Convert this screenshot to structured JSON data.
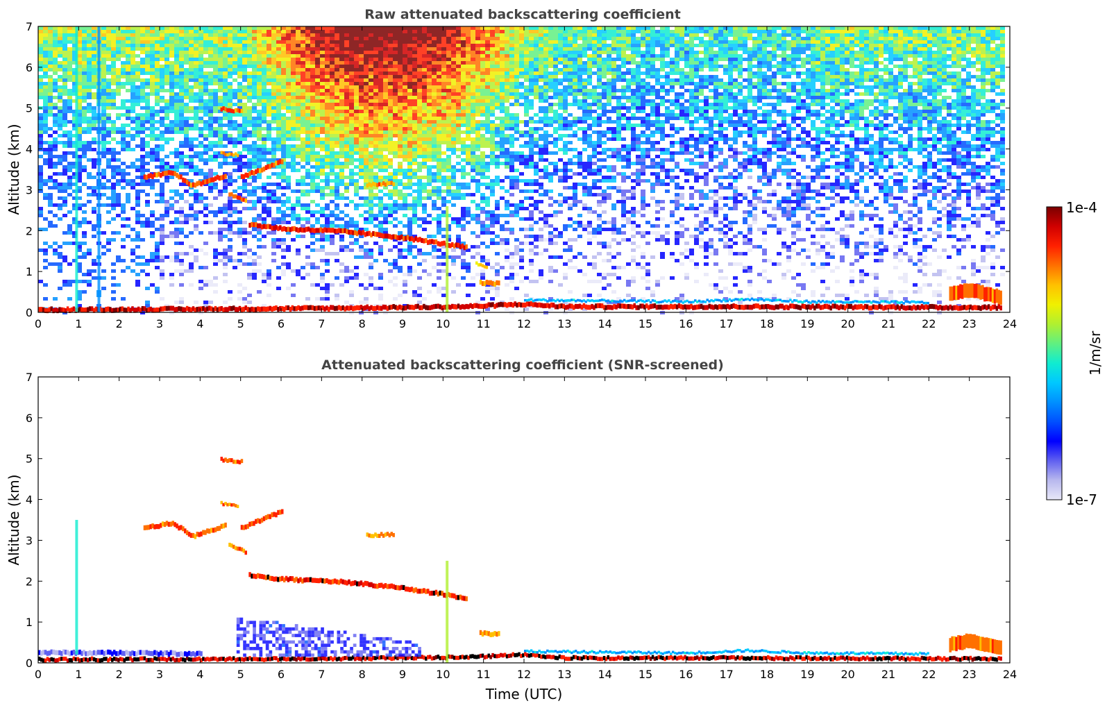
{
  "chart_data": [
    {
      "type": "heatmap",
      "title": "Raw attenuated backscattering coefficient",
      "xlabel": "",
      "ylabel": "Altitude (km)",
      "xlim": [
        0,
        24
      ],
      "ylim": [
        0,
        7
      ],
      "xticks": [
        "0",
        "1",
        "2",
        "3",
        "4",
        "5",
        "6",
        "7",
        "8",
        "9",
        "10",
        "11",
        "12",
        "13",
        "14",
        "15",
        "16",
        "17",
        "18",
        "19",
        "20",
        "21",
        "22",
        "23",
        "24"
      ],
      "yticks": [
        "0",
        "1",
        "2",
        "3",
        "4",
        "5",
        "6",
        "7"
      ],
      "noise": "high",
      "features": [
        {
          "kind": "layer",
          "points": [
            [
              0.0,
              0.06
            ],
            [
              4.0,
              0.08
            ],
            [
              7.0,
              0.1
            ],
            [
              10.5,
              0.14
            ],
            [
              12.0,
              0.2
            ],
            [
              13.0,
              0.14
            ],
            [
              17.0,
              0.14
            ],
            [
              22.5,
              0.12
            ],
            [
              23.8,
              0.12
            ]
          ],
          "thickness": 0.12,
          "level": 1.0
        },
        {
          "kind": "layer",
          "points": [
            [
              5.2,
              2.15
            ],
            [
              6.0,
              2.05
            ],
            [
              7.5,
              1.98
            ],
            [
              9.0,
              1.83
            ],
            [
              10.6,
              1.58
            ]
          ],
          "thickness": 0.12,
          "level": 0.95
        },
        {
          "kind": "layer",
          "points": [
            [
              2.6,
              3.3
            ],
            [
              3.3,
              3.42
            ],
            [
              3.8,
              3.1
            ],
            [
              4.6,
              3.35
            ]
          ],
          "thickness": 0.12,
          "level": 0.9
        },
        {
          "kind": "layer",
          "points": [
            [
              5.0,
              3.3
            ],
            [
              5.5,
              3.5
            ],
            [
              6.0,
              3.7
            ]
          ],
          "thickness": 0.12,
          "level": 0.9
        },
        {
          "kind": "layer",
          "points": [
            [
              4.5,
              4.98
            ],
            [
              5.0,
              4.92
            ]
          ],
          "thickness": 0.1,
          "level": 0.9
        },
        {
          "kind": "layer",
          "points": [
            [
              4.5,
              3.9
            ],
            [
              4.9,
              3.85
            ]
          ],
          "thickness": 0.08,
          "level": 0.85
        },
        {
          "kind": "layer",
          "points": [
            [
              4.7,
              2.9
            ],
            [
              5.1,
              2.72
            ]
          ],
          "thickness": 0.1,
          "level": 0.85
        },
        {
          "kind": "layer",
          "points": [
            [
              8.1,
              3.12
            ],
            [
              8.8,
              3.15
            ]
          ],
          "thickness": 0.1,
          "level": 0.85
        },
        {
          "kind": "layer",
          "points": [
            [
              10.8,
              1.2
            ],
            [
              11.1,
              1.1
            ]
          ],
          "thickness": 0.08,
          "level": 0.8
        },
        {
          "kind": "layer",
          "points": [
            [
              10.9,
              0.72
            ],
            [
              11.4,
              0.7
            ]
          ],
          "thickness": 0.12,
          "level": 0.85
        },
        {
          "kind": "layer",
          "points": [
            [
              22.5,
              0.45
            ],
            [
              23.0,
              0.55
            ],
            [
              23.8,
              0.35
            ]
          ],
          "thickness": 0.35,
          "level": 0.9
        },
        {
          "kind": "layer",
          "points": [
            [
              12.0,
              0.3
            ],
            [
              16.0,
              0.26
            ],
            [
              17.5,
              0.32
            ],
            [
              19.0,
              0.26
            ],
            [
              22.0,
              0.24
            ]
          ],
          "thickness": 0.06,
          "level": 0.45
        },
        {
          "kind": "column",
          "x": 10.1,
          "y0": 0.0,
          "y1": 2.6,
          "level": 0.6
        },
        {
          "kind": "column",
          "x": 0.95,
          "y0": 0.0,
          "y1": 7.0,
          "level": 0.45
        },
        {
          "kind": "column",
          "x": 1.5,
          "y0": 0.0,
          "y1": 7.0,
          "level": 0.35
        }
      ]
    },
    {
      "type": "heatmap",
      "title": "Attenuated backscattering coefficient (SNR-screened)",
      "xlabel": "Time (UTC)",
      "ylabel": "Altitude (km)",
      "xlim": [
        0,
        24
      ],
      "ylim": [
        0,
        7
      ],
      "xticks": [
        "0",
        "1",
        "2",
        "3",
        "4",
        "5",
        "6",
        "7",
        "8",
        "9",
        "10",
        "11",
        "12",
        "13",
        "14",
        "15",
        "16",
        "17",
        "18",
        "19",
        "20",
        "21",
        "22",
        "23",
        "24"
      ],
      "yticks": [
        "0",
        "1",
        "2",
        "3",
        "4",
        "5",
        "6",
        "7"
      ],
      "noise": "screened",
      "features": [
        {
          "kind": "layer",
          "points": [
            [
              0.0,
              0.08
            ],
            [
              4.0,
              0.09
            ],
            [
              7.0,
              0.1
            ],
            [
              10.5,
              0.14
            ],
            [
              12.0,
              0.2
            ],
            [
              13.0,
              0.12
            ],
            [
              17.0,
              0.12
            ],
            [
              22.5,
              0.1
            ],
            [
              23.8,
              0.1
            ]
          ],
          "thickness": 0.1,
          "level": 1.0
        },
        {
          "kind": "layer",
          "points": [
            [
              0.0,
              0.25
            ],
            [
              2.5,
              0.24
            ],
            [
              4.0,
              0.22
            ]
          ],
          "thickness": 0.12,
          "level": 0.2
        },
        {
          "kind": "layer",
          "points": [
            [
              5.2,
              2.15
            ],
            [
              6.0,
              2.05
            ],
            [
              7.5,
              1.98
            ],
            [
              9.0,
              1.83
            ],
            [
              10.6,
              1.58
            ]
          ],
          "thickness": 0.12,
          "level": 0.95
        },
        {
          "kind": "layer",
          "points": [
            [
              2.6,
              3.3
            ],
            [
              3.3,
              3.42
            ],
            [
              3.8,
              3.1
            ],
            [
              4.6,
              3.35
            ]
          ],
          "thickness": 0.12,
          "level": 0.9
        },
        {
          "kind": "layer",
          "points": [
            [
              5.0,
              3.3
            ],
            [
              5.5,
              3.5
            ],
            [
              6.0,
              3.7
            ]
          ],
          "thickness": 0.12,
          "level": 0.9
        },
        {
          "kind": "layer",
          "points": [
            [
              4.5,
              4.98
            ],
            [
              5.0,
              4.92
            ]
          ],
          "thickness": 0.1,
          "level": 0.9
        },
        {
          "kind": "layer",
          "points": [
            [
              4.5,
              3.9
            ],
            [
              4.9,
              3.85
            ]
          ],
          "thickness": 0.08,
          "level": 0.85
        },
        {
          "kind": "layer",
          "points": [
            [
              4.7,
              2.9
            ],
            [
              5.1,
              2.72
            ]
          ],
          "thickness": 0.1,
          "level": 0.85
        },
        {
          "kind": "layer",
          "points": [
            [
              8.1,
              3.12
            ],
            [
              8.8,
              3.15
            ]
          ],
          "thickness": 0.1,
          "level": 0.85
        },
        {
          "kind": "layer",
          "points": [
            [
              10.9,
              0.72
            ],
            [
              11.4,
              0.7
            ]
          ],
          "thickness": 0.12,
          "level": 0.85
        },
        {
          "kind": "layer",
          "points": [
            [
              22.5,
              0.45
            ],
            [
              23.0,
              0.55
            ],
            [
              23.8,
              0.35
            ]
          ],
          "thickness": 0.35,
          "level": 0.9
        },
        {
          "kind": "layer",
          "points": [
            [
              12.0,
              0.28
            ],
            [
              16.0,
              0.24
            ],
            [
              17.5,
              0.3
            ],
            [
              19.0,
              0.24
            ],
            [
              22.0,
              0.22
            ]
          ],
          "thickness": 0.06,
          "level": 0.45
        },
        {
          "kind": "column",
          "x": 10.1,
          "y0": 0.0,
          "y1": 2.5,
          "level": 0.6
        },
        {
          "kind": "column",
          "x": 0.95,
          "y0": 0.2,
          "y1": 3.5,
          "level": 0.45
        },
        {
          "kind": "patch",
          "x0": 4.9,
          "x1": 9.5,
          "y0": 0.15,
          "y1": 1.1,
          "level": 0.12
        }
      ]
    }
  ],
  "colorbar": {
    "max_label": "1e-4",
    "min_label": "1e-7",
    "unit_label": "1/m/sr",
    "scale": "log",
    "range": [
      1e-07,
      0.0001
    ],
    "colors": [
      "#e8e8f8",
      "#b8b8ee",
      "#6060f0",
      "#0000ff",
      "#0050ff",
      "#0090ff",
      "#00c8ff",
      "#10ecd0",
      "#60f080",
      "#b0f030",
      "#f0f000",
      "#ffc000",
      "#ff7000",
      "#ff2000",
      "#d00000",
      "#7a0000"
    ]
  }
}
